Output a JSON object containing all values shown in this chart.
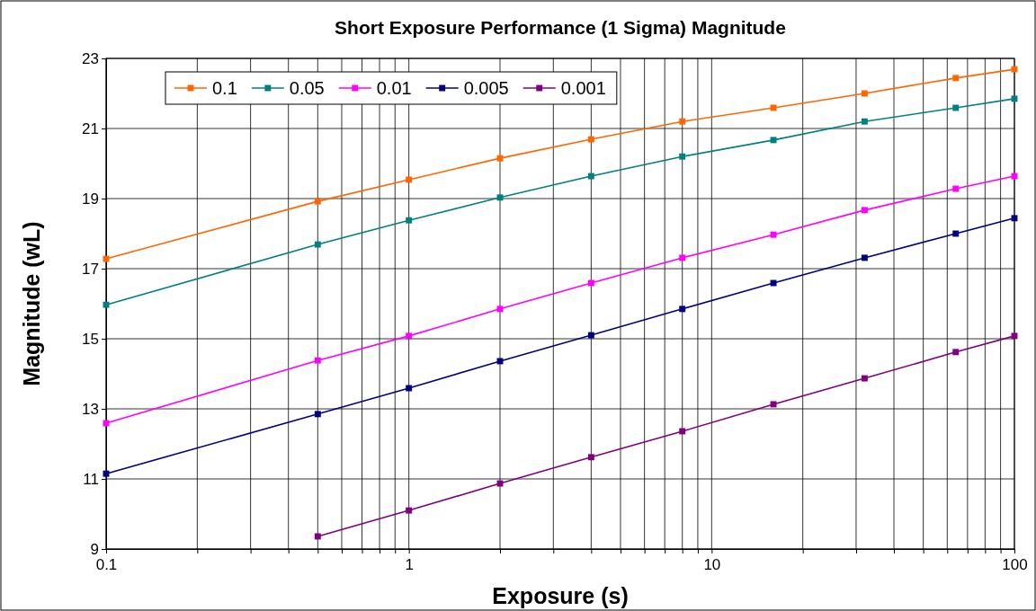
{
  "chart_data": {
    "type": "line",
    "title": "Short Exposure Performance (1 Sigma) Magnitude",
    "xlabel": "Exposure (s)",
    "ylabel": "Magnitude (wL)",
    "log": "x",
    "grid": true,
    "legend": "top left",
    "marker": "square",
    "line_style": "solid",
    "xlim": [
      0.1,
      100
    ],
    "ylim": [
      9,
      23
    ],
    "xticks": [
      0.1,
      {
        "value": 0.2,
        "label": null
      },
      {
        "value": 0.3,
        "label": null
      },
      {
        "value": 0.4,
        "label": null
      },
      {
        "value": 0.5,
        "label": null
      },
      {
        "value": 0.6,
        "label": null
      },
      {
        "value": 0.7,
        "label": null
      },
      {
        "value": 0.8,
        "label": null
      },
      {
        "value": 0.9,
        "label": null
      },
      1,
      {
        "value": 2,
        "label": null
      },
      {
        "value": 3,
        "label": null
      },
      {
        "value": 4,
        "label": null
      },
      {
        "value": 5,
        "label": null
      },
      {
        "value": 6,
        "label": null
      },
      {
        "value": 7,
        "label": null
      },
      {
        "value": 8,
        "label": null
      },
      {
        "value": 9,
        "label": null
      },
      10,
      {
        "value": 20,
        "label": null
      },
      {
        "value": 30,
        "label": null
      },
      {
        "value": 40,
        "label": null
      },
      {
        "value": 50,
        "label": null
      },
      {
        "value": 60,
        "label": null
      },
      {
        "value": 70,
        "label": null
      },
      {
        "value": 80,
        "label": null
      },
      {
        "value": 90,
        "label": null
      },
      100
    ],
    "yticks": [
      9,
      11,
      13,
      15,
      17,
      19,
      21,
      23
    ],
    "x": [
      0.1,
      0.5,
      1,
      2,
      4,
      8,
      16,
      32,
      64,
      100
    ],
    "series": [
      {
        "name": "0.1",
        "color": "#ff6600",
        "values": [
          17.28,
          18.92,
          19.54,
          20.15,
          20.69,
          21.2,
          21.59,
          22.0,
          22.44,
          22.69
        ]
      },
      {
        "name": "0.05",
        "color": "#008080",
        "values": [
          15.97,
          17.69,
          18.38,
          19.03,
          19.64,
          20.2,
          20.67,
          21.2,
          21.59,
          21.85
        ]
      },
      {
        "name": "0.01",
        "color": "#ff00ff",
        "values": [
          12.59,
          14.38,
          15.08,
          15.85,
          16.59,
          17.31,
          17.97,
          18.67,
          19.28,
          19.64
        ]
      },
      {
        "name": "0.005",
        "color": "#000080",
        "values": [
          11.15,
          12.85,
          13.59,
          14.36,
          15.1,
          15.85,
          16.59,
          17.31,
          18.0,
          18.44
        ]
      },
      {
        "name": "0.001",
        "color": "#800080",
        "values": [
          null,
          9.36,
          10.1,
          10.87,
          11.62,
          12.36,
          13.13,
          13.87,
          14.62,
          15.08
        ]
      }
    ]
  }
}
